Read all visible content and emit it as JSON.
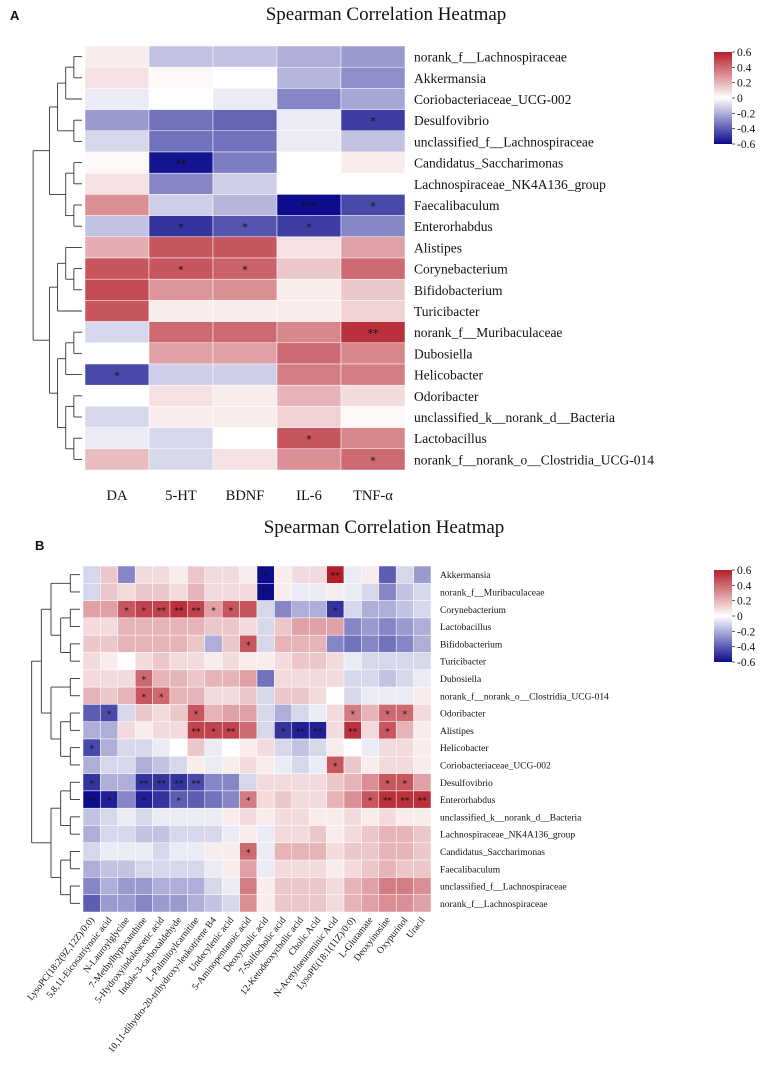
{
  "colors": {
    "low": "#0c0c8c",
    "mid": "#ffffff",
    "high": "#b41e2a"
  },
  "chart_data": [
    {
      "panel": "A",
      "type": "heatmap",
      "title": "Spearman Correlation Heatmap",
      "columns": [
        "DA",
        "5-HT",
        "BDNF",
        "IL-6",
        "TNF-α"
      ],
      "rows": [
        "norank_f__Lachnospiraceae",
        "Akkermansia",
        "Coriobacteriaceae_UCG-002",
        "Desulfovibrio",
        "unclassified_f__Lachnospiraceae",
        "Candidatus_Saccharimonas",
        "Lachnospiraceae_NK4A136_group",
        "Faecalibaculum",
        "Enterorhabdus",
        "Alistipes",
        "Corynebacterium",
        "Bifidobacterium",
        "Turicibacter",
        "norank_f__Muribaculaceae",
        "Dubosiella",
        "Helicobacter",
        "Odoribacter",
        "unclassified_k__norank_d__Bacteria",
        "Lactobacillus",
        "norank_f__norank_o__Clostridia_UCG-014"
      ],
      "values": [
        [
          0.05,
          -0.15,
          -0.15,
          -0.2,
          -0.25
        ],
        [
          0.08,
          0.02,
          0.0,
          -0.18,
          -0.28
        ],
        [
          -0.05,
          0.0,
          -0.05,
          -0.3,
          -0.22
        ],
        [
          -0.25,
          -0.35,
          -0.38,
          -0.05,
          -0.48
        ],
        [
          -0.1,
          -0.35,
          -0.35,
          -0.05,
          -0.15
        ],
        [
          0.02,
          -0.58,
          -0.32,
          0.0,
          0.05
        ],
        [
          0.08,
          -0.3,
          -0.12,
          0.0,
          0.0
        ],
        [
          0.3,
          -0.12,
          -0.18,
          -0.6,
          -0.45
        ],
        [
          -0.15,
          -0.5,
          -0.42,
          -0.48,
          -0.3
        ],
        [
          0.22,
          0.45,
          0.45,
          0.08,
          0.25
        ],
        [
          0.45,
          0.45,
          0.42,
          0.15,
          0.4
        ],
        [
          0.48,
          0.28,
          0.3,
          0.05,
          0.15
        ],
        [
          0.45,
          0.05,
          0.05,
          0.05,
          0.12
        ],
        [
          -0.1,
          0.4,
          0.4,
          0.32,
          0.55
        ],
        [
          0.0,
          0.25,
          0.25,
          0.4,
          0.32
        ],
        [
          -0.45,
          -0.12,
          -0.12,
          0.35,
          0.35
        ],
        [
          0.0,
          0.08,
          0.05,
          0.2,
          0.1
        ],
        [
          -0.1,
          0.05,
          0.05,
          0.12,
          0.02
        ],
        [
          -0.05,
          -0.1,
          0.0,
          0.45,
          0.32
        ],
        [
          0.18,
          -0.1,
          0.08,
          0.3,
          0.4
        ]
      ],
      "stars": [
        [
          "",
          "",
          "",
          "",
          ""
        ],
        [
          "",
          "",
          "",
          "",
          ""
        ],
        [
          "",
          "",
          "",
          "",
          ""
        ],
        [
          "",
          "",
          "",
          "",
          "*"
        ],
        [
          "",
          "",
          "",
          "",
          ""
        ],
        [
          "",
          "**",
          "",
          "",
          ""
        ],
        [
          "",
          "",
          "",
          "",
          ""
        ],
        [
          "",
          "",
          "",
          "***",
          "*"
        ],
        [
          "",
          "*",
          "*",
          "*",
          ""
        ],
        [
          "",
          "",
          "",
          "",
          ""
        ],
        [
          "",
          "*",
          "*",
          "",
          ""
        ],
        [
          "",
          "",
          "",
          "",
          ""
        ],
        [
          "",
          "",
          "",
          "",
          ""
        ],
        [
          "",
          "",
          "",
          "",
          "**"
        ],
        [
          "",
          "",
          "",
          "",
          ""
        ],
        [
          "*",
          "",
          "",
          "",
          ""
        ],
        [
          "",
          "",
          "",
          "",
          ""
        ],
        [
          "",
          "",
          "",
          "",
          ""
        ],
        [
          "",
          "",
          "",
          "*",
          ""
        ],
        [
          "",
          "",
          "",
          "",
          "*"
        ]
      ],
      "colorbar": {
        "range": [
          -0.6,
          0.6
        ],
        "ticks": [
          "0.6",
          "0.4",
          "0.2",
          "0",
          "-0.2",
          "-0.4",
          "-0.6"
        ]
      }
    },
    {
      "panel": "B",
      "type": "heatmap",
      "title": "Spearman Correlation Heatmap",
      "columns": [
        "LysoPC(18:2(9Z,12Z)/0:0)",
        "5,8,11-Eicosatriynoic acid",
        "N-Lauroylglycine",
        "7-Methylhypoxanthine",
        "5-Hydroxyindoleacetic acid",
        "Indole-3-carboxaldehyde",
        "L-Palmitoylcarnitine",
        "10,11-dihydro-20-trihydroxy-leukotriene B4",
        "Undecylenic acid",
        "5-Aminopentanoic acid",
        "Deoxycholic acid",
        "7-Sulfocholic acid",
        "12-Ketodeoxycholic acid",
        "Cholic Acid",
        "N-Acetylneuraminic Acid",
        "LysoPE(18:1(11Z)/0:0)",
        "L-Glutamate",
        "Deoxyinosine",
        "Oxypurinol",
        "Uracil"
      ],
      "rows": [
        "Akkermansia",
        "norank_f__Muribaculaceae",
        "Corynebacterium",
        "Lactobacillus",
        "Bifidobacterium",
        "Turicibacter",
        "Dubosiella",
        "norank_f__norank_o__Clostridia_UCG-014",
        "Odoribacter",
        "Alistipes",
        "Helicobacter",
        "Coriobacteriaceae_UCG-002",
        "Desulfovibrio",
        "Enterorhabdus",
        "unclassified_k__norank_d__Bacteria",
        "Lachnospiraceae_NK4A136_group",
        "Candidatus_Saccharimonas",
        "Faecalibaculum",
        "unclassified_f__Lachnospiraceae",
        "norank_f__Lachnospiraceae"
      ],
      "values": [
        [
          -0.1,
          0.15,
          -0.3,
          0.1,
          0.1,
          0.05,
          0.15,
          0.1,
          0.1,
          0.05,
          -0.6,
          0.05,
          0.1,
          0.1,
          0.6,
          -0.05,
          0.05,
          -0.4,
          -0.1,
          -0.25
        ],
        [
          -0.1,
          0.15,
          0.1,
          0.15,
          0.15,
          0.1,
          0.2,
          0.1,
          0.1,
          0.1,
          -0.6,
          0.05,
          -0.05,
          -0.05,
          0.05,
          -0.05,
          -0.1,
          -0.3,
          -0.15,
          -0.1
        ],
        [
          0.25,
          0.25,
          0.45,
          0.5,
          0.5,
          0.55,
          0.5,
          0.25,
          0.45,
          0.45,
          -0.1,
          -0.3,
          -0.2,
          -0.2,
          -0.5,
          -0.1,
          -0.2,
          -0.2,
          -0.15,
          -0.1
        ],
        [
          0.1,
          0.1,
          0.2,
          0.2,
          0.2,
          0.2,
          0.2,
          0.15,
          0.15,
          0.1,
          -0.1,
          0.15,
          0.25,
          0.25,
          0.25,
          -0.3,
          -0.25,
          -0.3,
          -0.25,
          -0.2
        ],
        [
          0.15,
          0.15,
          0.2,
          0.2,
          0.2,
          0.2,
          0.15,
          -0.2,
          0.15,
          0.45,
          -0.1,
          0.2,
          0.2,
          0.2,
          -0.3,
          -0.35,
          -0.3,
          -0.35,
          -0.3,
          -0.2
        ],
        [
          0.1,
          0.05,
          0.0,
          0.1,
          0.15,
          0.1,
          0.1,
          0.05,
          0.1,
          0.05,
          0.05,
          0.1,
          0.15,
          0.15,
          0.1,
          -0.05,
          -0.1,
          -0.1,
          -0.1,
          -0.1
        ],
        [
          0.1,
          0.1,
          0.1,
          0.4,
          0.2,
          0.2,
          0.15,
          0.2,
          0.2,
          0.25,
          -0.35,
          0.1,
          0.1,
          0.1,
          0.1,
          -0.1,
          -0.1,
          -0.15,
          -0.1,
          -0.05
        ],
        [
          0.2,
          0.15,
          0.2,
          0.45,
          0.4,
          0.2,
          0.2,
          0.1,
          0.1,
          0.15,
          -0.1,
          0.15,
          0.15,
          0.1,
          0.0,
          -0.1,
          -0.05,
          -0.05,
          -0.05,
          0.05
        ],
        [
          -0.4,
          -0.45,
          -0.1,
          0.15,
          0.1,
          0.15,
          0.45,
          0.2,
          0.25,
          0.25,
          -0.1,
          -0.2,
          -0.1,
          -0.05,
          0.1,
          0.35,
          0.2,
          0.4,
          0.4,
          0.1
        ],
        [
          -0.2,
          -0.2,
          0.1,
          0.05,
          0.1,
          0.1,
          0.5,
          0.5,
          0.5,
          0.4,
          -0.1,
          -0.5,
          -0.55,
          -0.55,
          0.1,
          0.55,
          0.1,
          0.45,
          0.2,
          0.05
        ],
        [
          -0.45,
          -0.2,
          -0.1,
          -0.1,
          -0.05,
          0.0,
          0.15,
          -0.05,
          0.0,
          0.05,
          0.1,
          -0.1,
          -0.15,
          -0.1,
          0.05,
          0.0,
          -0.05,
          0.1,
          0.1,
          0.05
        ],
        [
          -0.2,
          -0.1,
          -0.1,
          -0.2,
          -0.15,
          -0.1,
          0.05,
          -0.05,
          0.05,
          0.1,
          0.05,
          -0.05,
          -0.1,
          -0.05,
          0.45,
          0.15,
          0.05,
          0.1,
          0.1,
          0.05
        ],
        [
          -0.5,
          -0.2,
          -0.2,
          -0.5,
          -0.5,
          -0.5,
          -0.45,
          -0.3,
          -0.3,
          -0.1,
          0.1,
          0.1,
          0.1,
          0.1,
          0.15,
          0.2,
          0.3,
          0.45,
          0.45,
          0.25
        ],
        [
          -0.6,
          -0.55,
          -0.3,
          -0.55,
          -0.5,
          -0.4,
          -0.4,
          -0.35,
          -0.3,
          0.35,
          0.1,
          0.15,
          0.1,
          0.1,
          0.2,
          0.3,
          0.45,
          0.55,
          0.55,
          0.55
        ],
        [
          -0.15,
          -0.1,
          -0.05,
          -0.1,
          -0.05,
          -0.05,
          -0.05,
          -0.05,
          0.05,
          0.1,
          0.05,
          0.1,
          0.1,
          0.05,
          0.05,
          0.1,
          0.05,
          0.1,
          0.05,
          0.05
        ],
        [
          -0.2,
          -0.1,
          -0.1,
          -0.15,
          -0.15,
          -0.1,
          -0.1,
          -0.1,
          -0.05,
          0.05,
          -0.05,
          0.1,
          0.1,
          0.15,
          0.05,
          0.1,
          0.15,
          0.2,
          0.2,
          0.15
        ],
        [
          -0.1,
          -0.05,
          -0.05,
          -0.05,
          -0.1,
          -0.05,
          -0.05,
          0.05,
          0.05,
          0.4,
          -0.05,
          0.2,
          0.2,
          0.2,
          0.1,
          0.15,
          0.15,
          0.2,
          0.2,
          0.15
        ],
        [
          -0.2,
          -0.15,
          -0.15,
          -0.1,
          -0.1,
          -0.1,
          -0.1,
          -0.05,
          0.05,
          0.25,
          -0.05,
          0.1,
          0.1,
          0.1,
          0.05,
          0.1,
          0.15,
          0.2,
          0.15,
          0.15
        ],
        [
          -0.3,
          -0.2,
          -0.25,
          -0.25,
          -0.2,
          -0.2,
          -0.2,
          -0.1,
          -0.05,
          0.35,
          0.05,
          0.15,
          0.15,
          0.15,
          0.1,
          0.2,
          0.25,
          0.35,
          0.35,
          0.3
        ],
        [
          -0.4,
          -0.25,
          -0.25,
          -0.3,
          -0.25,
          -0.25,
          -0.2,
          -0.15,
          -0.1,
          0.3,
          0.05,
          0.15,
          0.15,
          0.15,
          0.1,
          0.2,
          0.25,
          0.3,
          0.3,
          0.25
        ]
      ],
      "stars": [
        [
          "",
          "",
          "",
          "",
          "",
          "",
          "",
          "",
          "",
          "",
          "*",
          "",
          "",
          "",
          "**",
          "",
          "",
          "",
          "",
          ""
        ],
        [
          "",
          "",
          "",
          "",
          "",
          "",
          "",
          "",
          "",
          "",
          "**",
          "",
          "",
          "",
          "",
          "",
          "",
          "",
          "",
          ""
        ],
        [
          "",
          "",
          "*",
          "*",
          "**",
          "**",
          "**",
          "*",
          "*",
          "",
          "",
          "",
          "",
          "",
          "*",
          "",
          "",
          "",
          "",
          ""
        ],
        [
          "",
          "",
          "",
          "",
          "",
          "",
          "",
          "",
          "",
          "",
          "",
          "",
          "",
          "",
          "",
          "",
          "",
          "",
          "",
          ""
        ],
        [
          "",
          "",
          "",
          "",
          "",
          "",
          "",
          "",
          "",
          "*",
          "",
          "",
          "",
          "",
          "",
          "",
          "",
          "",
          "",
          ""
        ],
        [
          "",
          "",
          "",
          "",
          "",
          "",
          "",
          "",
          "",
          "",
          "",
          "",
          "",
          "",
          "",
          "",
          "",
          "",
          "",
          ""
        ],
        [
          "",
          "",
          "",
          "*",
          "",
          "",
          "",
          "",
          "",
          "",
          "",
          "",
          "",
          "",
          "",
          "",
          "",
          "",
          "",
          ""
        ],
        [
          "",
          "",
          "",
          "*",
          "*",
          "",
          "",
          "",
          "",
          "",
          "",
          "",
          "",
          "",
          "",
          "",
          "",
          "",
          "",
          ""
        ],
        [
          "",
          "*",
          "",
          "",
          "",
          "",
          "*",
          "",
          "",
          "",
          "",
          "",
          "",
          "",
          "",
          "*",
          "",
          "*",
          "*",
          ""
        ],
        [
          "",
          "",
          "",
          "",
          "",
          "",
          "**",
          "*",
          "**",
          "",
          "",
          "*",
          "**",
          "**",
          "",
          "**",
          "",
          "*",
          "",
          ""
        ],
        [
          "*",
          "",
          "",
          "",
          "",
          "",
          "",
          "",
          "",
          "",
          "",
          "",
          "",
          "",
          "",
          "",
          "",
          "",
          "",
          ""
        ],
        [
          "",
          "",
          "",
          "",
          "",
          "",
          "",
          "",
          "",
          "",
          "",
          "",
          "",
          "",
          "*",
          "",
          "",
          "",
          "",
          ""
        ],
        [
          "*",
          "",
          "",
          "**",
          "**",
          "**",
          "**",
          "",
          "",
          "",
          "",
          "",
          "",
          "",
          "",
          "",
          "",
          "*",
          "*",
          ""
        ],
        [
          "**",
          "*",
          "",
          "*",
          "",
          "*",
          "",
          "",
          "",
          "*",
          "",
          "",
          "",
          "",
          "",
          "",
          "*",
          "**",
          "**",
          "**"
        ],
        [
          "",
          "",
          "",
          "",
          "",
          "",
          "",
          "",
          "",
          "",
          "",
          "",
          "",
          "",
          "",
          "",
          "",
          "",
          "",
          ""
        ],
        [
          "",
          "",
          "",
          "",
          "",
          "",
          "",
          "",
          "",
          "",
          "",
          "",
          "",
          "",
          "",
          "",
          "",
          "",
          "",
          ""
        ],
        [
          "",
          "",
          "",
          "",
          "",
          "",
          "",
          "",
          "",
          "*",
          "",
          "",
          "",
          "",
          "",
          "",
          "",
          "",
          "",
          ""
        ],
        [
          "",
          "",
          "",
          "",
          "",
          "",
          "",
          "",
          "",
          "",
          "",
          "",
          "",
          "",
          "",
          "",
          "",
          "",
          "",
          ""
        ],
        [
          "",
          "",
          "",
          "",
          "",
          "",
          "",
          "",
          "",
          "",
          "",
          "",
          "",
          "",
          "",
          "",
          "",
          "",
          "",
          ""
        ],
        [
          "",
          "",
          "",
          "",
          "",
          "",
          "",
          "",
          "",
          "",
          "",
          "",
          "",
          "",
          "",
          "",
          "",
          "",
          "",
          ""
        ]
      ],
      "colorbar": {
        "range": [
          -0.6,
          0.6
        ],
        "ticks": [
          "0.6",
          "0.4",
          "0.2",
          "0",
          "-0.2",
          "-0.4",
          "-0.6"
        ]
      }
    }
  ]
}
